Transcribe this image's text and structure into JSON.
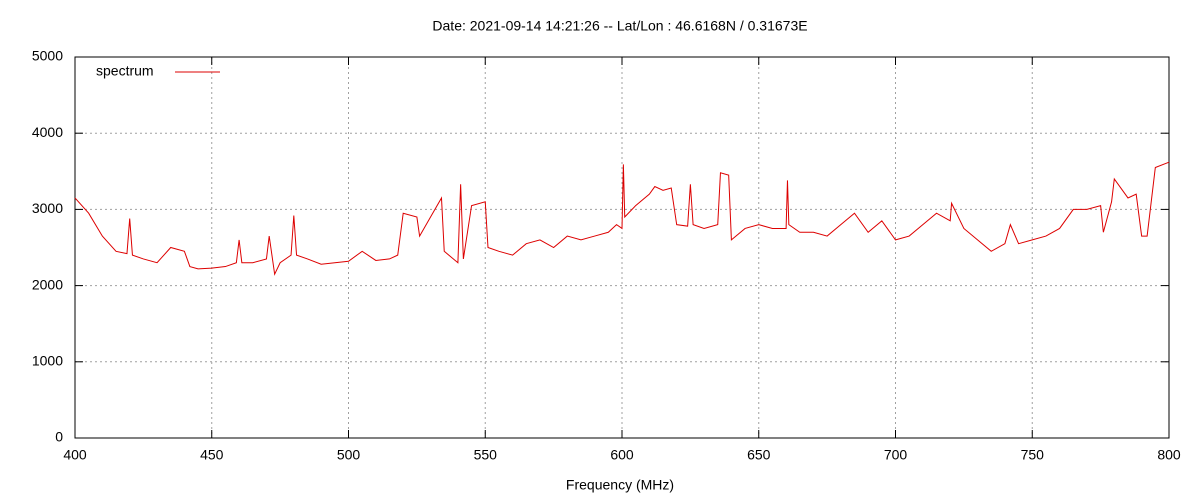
{
  "chart_data": {
    "type": "line",
    "title": "Date: 2021-09-14 14:21:26  --  Lat/Lon : 46.6168N / 0.31673E",
    "x_label": "Frequency (MHz)",
    "xlim": [
      400,
      800
    ],
    "xticks": [
      400,
      450,
      500,
      550,
      600,
      650,
      700,
      750,
      800
    ],
    "ylim": [
      0,
      5000
    ],
    "yticks": [
      0,
      1000,
      2000,
      3000,
      4000,
      5000
    ],
    "grid": true,
    "legend": "top-left",
    "x": [
      400,
      405,
      410,
      415,
      419,
      420,
      421,
      425,
      430,
      435,
      440,
      442,
      445,
      450,
      455,
      459,
      460,
      461,
      465,
      470,
      471,
      473,
      475,
      479,
      480,
      481,
      485,
      490,
      495,
      500,
      505,
      510,
      515,
      518,
      520,
      525,
      526,
      530,
      534,
      535,
      540,
      541,
      542,
      545,
      550,
      551,
      555,
      560,
      565,
      570,
      575,
      580,
      585,
      590,
      595,
      598,
      600,
      600.5,
      601,
      605,
      610,
      612,
      615,
      618,
      620,
      624,
      625,
      626,
      630,
      635,
      636,
      639,
      640,
      645,
      650,
      655,
      660,
      660.5,
      661,
      665,
      670,
      675,
      680,
      685,
      690,
      695,
      700,
      705,
      710,
      715,
      720,
      720.5,
      725,
      730,
      735,
      740,
      742,
      745,
      750,
      755,
      760,
      765,
      770,
      775,
      776,
      779,
      780,
      785,
      788,
      790,
      792,
      795,
      800
    ],
    "series": [
      {
        "name": "spectrum",
        "color": "#dd0000",
        "values": [
          3150,
          2950,
          2650,
          2450,
          2420,
          2880,
          2400,
          2350,
          2300,
          2500,
          2450,
          2250,
          2220,
          2230,
          2250,
          2300,
          2600,
          2300,
          2300,
          2350,
          2650,
          2150,
          2300,
          2400,
          2920,
          2400,
          2350,
          2280,
          2300,
          2320,
          2450,
          2330,
          2350,
          2400,
          2950,
          2900,
          2650,
          2900,
          3150,
          2450,
          2300,
          3330,
          2350,
          3050,
          3100,
          2500,
          2450,
          2400,
          2550,
          2600,
          2500,
          2650,
          2600,
          2650,
          2700,
          2800,
          2750,
          3590,
          2900,
          3050,
          3200,
          3300,
          3250,
          3280,
          2800,
          2780,
          3330,
          2800,
          2750,
          2800,
          3480,
          3450,
          2600,
          2750,
          2800,
          2750,
          2750,
          3380,
          2800,
          2700,
          2700,
          2650,
          2800,
          2950,
          2700,
          2850,
          2600,
          2650,
          2800,
          2950,
          2850,
          3080,
          2750,
          2600,
          2450,
          2550,
          2800,
          2550,
          2600,
          2650,
          2750,
          3000,
          3000,
          3050,
          2700,
          3100,
          3400,
          3150,
          3200,
          2650,
          2650,
          3550,
          3620
        ]
      }
    ]
  }
}
